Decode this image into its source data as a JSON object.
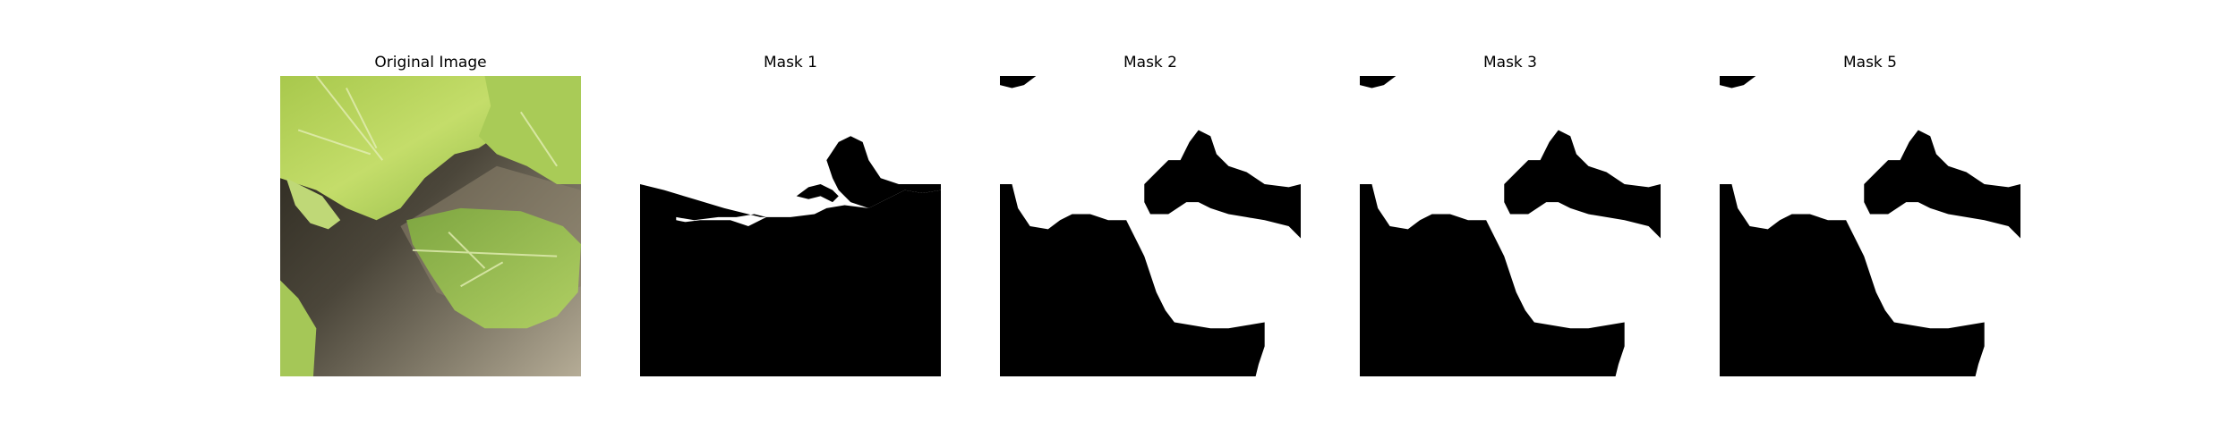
{
  "figure": {
    "panels": [
      {
        "title": "Original Image"
      },
      {
        "title": "Mask 1"
      },
      {
        "title": "Mask 2"
      },
      {
        "title": "Mask 3"
      },
      {
        "title": "Mask 5"
      }
    ]
  },
  "colors": {
    "mask_foreground": "#ffffff",
    "mask_background": "#000000",
    "leaf_light": "#b7d35a",
    "leaf_mid": "#95bb45",
    "leaf_dark": "#6f9a3a",
    "soil_dark": "#2f2c22",
    "soil_mid": "#6f6655",
    "soil_light": "#a39b86"
  }
}
